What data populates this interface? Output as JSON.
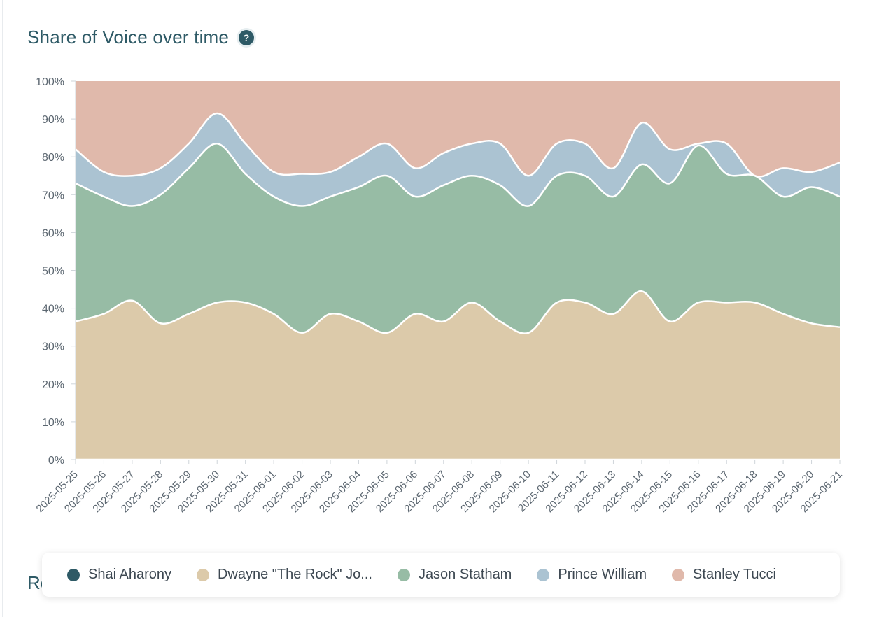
{
  "header": {
    "title": "Share of Voice over time",
    "help_icon": "question-circle-icon",
    "help_glyph": "?"
  },
  "next_section": {
    "heading": "Ro"
  },
  "chart_data": {
    "type": "area",
    "stacked": "percent",
    "title": "Share of Voice over time",
    "xlabel": "",
    "ylabel": "",
    "ylim": [
      0,
      100
    ],
    "y_ticks": [
      "0%",
      "10%",
      "20%",
      "30%",
      "40%",
      "50%",
      "60%",
      "70%",
      "80%",
      "90%",
      "100%"
    ],
    "grid": false,
    "legend_position": "bottom",
    "x": [
      "2025-05-25",
      "2025-05-26",
      "2025-05-27",
      "2025-05-28",
      "2025-05-29",
      "2025-05-30",
      "2025-05-31",
      "2025-06-01",
      "2025-06-02",
      "2025-06-03",
      "2025-06-04",
      "2025-06-05",
      "2025-06-06",
      "2025-06-07",
      "2025-06-08",
      "2025-06-09",
      "2025-06-10",
      "2025-06-11",
      "2025-06-12",
      "2025-06-13",
      "2025-06-14",
      "2025-06-15",
      "2025-06-16",
      "2025-06-17",
      "2025-06-18",
      "2025-06-19",
      "2025-06-20",
      "2025-06-21"
    ],
    "series": [
      {
        "name": "Shai Aharony",
        "color": "#2e5a66",
        "values": [
          0,
          0,
          0,
          0,
          0,
          0,
          0,
          0,
          0,
          0,
          0,
          0,
          0,
          0,
          0,
          0,
          0,
          0,
          0,
          0,
          0,
          0,
          0,
          0,
          0,
          0,
          0,
          0
        ]
      },
      {
        "name": "Dwayne \"The Rock\" Jo...",
        "color": "#dccaaa",
        "values": [
          36.5,
          38.5,
          42,
          36,
          38.5,
          41.5,
          41.5,
          38.5,
          33.5,
          38.5,
          36.5,
          33.5,
          38.5,
          36.5,
          41.5,
          36.5,
          33.5,
          41.5,
          41.5,
          38.5,
          44.5,
          36.5,
          41.5,
          41.5,
          41.5,
          38.5,
          36,
          35
        ]
      },
      {
        "name": "Jason Statham",
        "color": "#97bca5",
        "values": [
          36.5,
          31,
          25,
          34,
          38.5,
          42,
          34,
          31,
          33.5,
          31,
          35.5,
          41.5,
          31,
          36,
          33.5,
          36,
          33.5,
          33.5,
          33.5,
          31,
          33.5,
          36.5,
          41.5,
          34,
          33.5,
          31,
          36,
          34.5
        ]
      },
      {
        "name": "Prince William",
        "color": "#abc3d2",
        "values": [
          9,
          6.5,
          8,
          7,
          6.5,
          8,
          8,
          6.5,
          8.5,
          6.5,
          8,
          8.5,
          7.5,
          8.5,
          8.5,
          11,
          8,
          8.5,
          8.5,
          7.5,
          11,
          9,
          0.5,
          8,
          0,
          7.5,
          4,
          9
        ]
      },
      {
        "name": "Stanley Tucci",
        "color": "#e0b9ab",
        "values": [
          18,
          24,
          25,
          23,
          16.5,
          8.5,
          16.5,
          24,
          24.5,
          24,
          20,
          16.5,
          23,
          19,
          16.5,
          16.5,
          25,
          16.5,
          16.5,
          23,
          11,
          18,
          16.5,
          16.5,
          25,
          23,
          24,
          21.5
        ]
      }
    ]
  }
}
